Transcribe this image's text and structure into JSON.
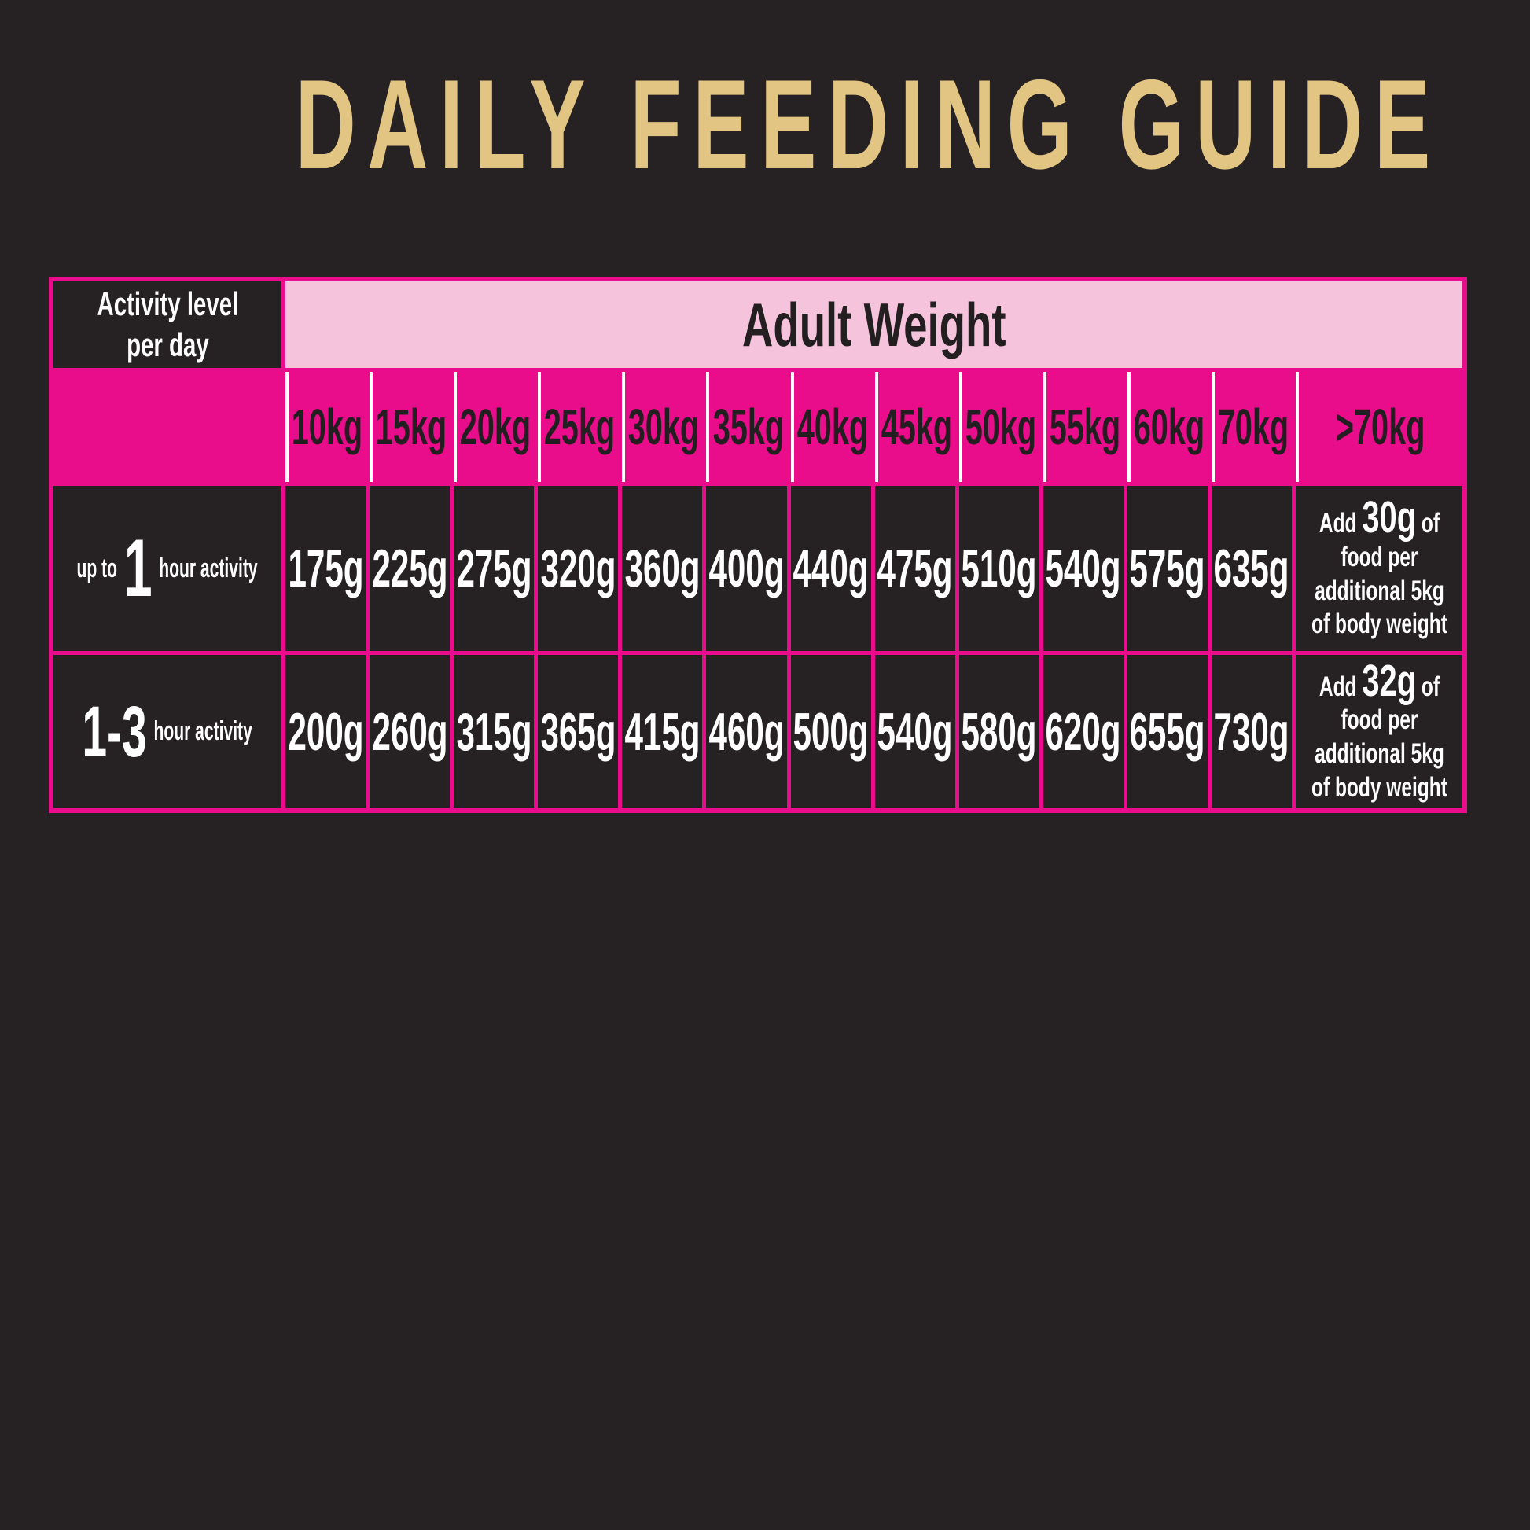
{
  "title": "DAILY FEEDING GUIDE",
  "colors": {
    "background": "#262122",
    "magenta": "#e90c8b",
    "pink": "#f6c3dc",
    "gold": "#e2c483",
    "dark_text": "#231f20"
  },
  "table": {
    "corner": {
      "line1": "Activity level",
      "line2": "per day"
    },
    "group_header": "Adult Weight",
    "weights": [
      "10kg",
      "15kg",
      "20kg",
      "25kg",
      "30kg",
      "35kg",
      "40kg",
      "45kg",
      "50kg",
      "55kg",
      "60kg",
      "70kg",
      ">70kg"
    ],
    "rows": [
      {
        "prefix": "up to",
        "big": "1",
        "suffix": "hour activity",
        "values": [
          "175g",
          "225g",
          "275g",
          "320g",
          "360g",
          "400g",
          "440g",
          "475g",
          "510g",
          "540g",
          "575g",
          "635g"
        ],
        "extra": {
          "pre": "Add",
          "amount": "30g",
          "post": "of",
          "line2": "food per",
          "line3": "additional 5kg",
          "line4": "of body weight"
        }
      },
      {
        "big": "1-3",
        "suffix": "hour activity",
        "values": [
          "200g",
          "260g",
          "315g",
          "365g",
          "415g",
          "460g",
          "500g",
          "540g",
          "580g",
          "620g",
          "655g",
          "730g"
        ],
        "extra": {
          "pre": "Add",
          "amount": "32g",
          "post": "of",
          "line2": "food per",
          "line3": "additional 5kg",
          "line4": "of body weight"
        }
      }
    ]
  },
  "chart_data": {
    "type": "table",
    "title": "DAILY FEEDING GUIDE",
    "row_header": "Activity level per day",
    "column_header_group": "Adult Weight",
    "categories": [
      "10kg",
      "15kg",
      "20kg",
      "25kg",
      "30kg",
      "35kg",
      "40kg",
      "45kg",
      "50kg",
      "55kg",
      "60kg",
      "70kg"
    ],
    "units": "grams of food per day",
    "series": [
      {
        "name": "up to 1 hour activity",
        "values": [
          175,
          225,
          275,
          320,
          360,
          400,
          440,
          475,
          510,
          540,
          575,
          635
        ],
        "over_70kg_rule": "Add 30g of food per additional 5kg of body weight"
      },
      {
        "name": "1-3 hour activity",
        "values": [
          200,
          260,
          315,
          365,
          415,
          460,
          500,
          540,
          580,
          620,
          655,
          730
        ],
        "over_70kg_rule": "Add 32g of food per additional 5kg of body weight"
      }
    ]
  }
}
